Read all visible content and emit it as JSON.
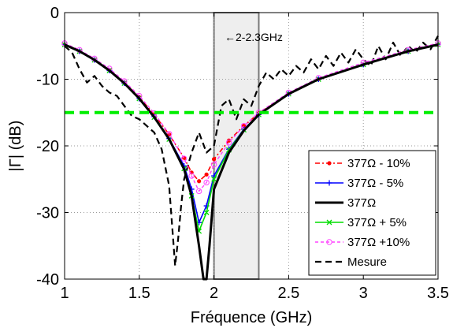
{
  "chart_data": {
    "type": "line",
    "xlabel": "Fréquence (GHz)",
    "ylabel": "|Γ| (dB)",
    "xlim": [
      1,
      3.5
    ],
    "ylim": [
      -40,
      0
    ],
    "xticks": [
      "1",
      "1.5",
      "2",
      "2.5",
      "3",
      "3.5"
    ],
    "yticks": [
      "0",
      "-10",
      "-20",
      "-30",
      "-40"
    ],
    "grid": true,
    "legend_position": "bottom-right",
    "band": {
      "x": [
        2,
        2.3
      ],
      "label": "←2-2.3GHz"
    },
    "threshold": {
      "y": -15,
      "color": "#00ee00"
    },
    "series": [
      {
        "name": "377Ω - 10%",
        "color": "#ff0000",
        "x": [
          1.0,
          1.1,
          1.2,
          1.3,
          1.4,
          1.5,
          1.6,
          1.7,
          1.8,
          1.85,
          1.9,
          1.95,
          2.0,
          2.1,
          2.2,
          2.3,
          2.5,
          2.7,
          3.0,
          3.3,
          3.5
        ],
        "y": [
          -4.8,
          -5.8,
          -7.1,
          -8.6,
          -10.5,
          -12.7,
          -15.3,
          -18.3,
          -21.8,
          -24,
          -25.3,
          -24.3,
          -22,
          -19.2,
          -17,
          -15.1,
          -12.2,
          -10,
          -7.8,
          -5.8,
          -4.8
        ]
      },
      {
        "name": "377Ω - 5%",
        "color": "#0000ff",
        "x": [
          1.0,
          1.1,
          1.2,
          1.3,
          1.4,
          1.5,
          1.6,
          1.7,
          1.8,
          1.85,
          1.9,
          1.95,
          2.0,
          2.1,
          2.2,
          2.3,
          2.5,
          2.7,
          3.0,
          3.3,
          3.5
        ],
        "y": [
          -4.8,
          -5.8,
          -7.1,
          -8.7,
          -10.6,
          -12.9,
          -15.6,
          -18.9,
          -23,
          -26.5,
          -31.5,
          -29,
          -24.5,
          -20.5,
          -17.5,
          -15.3,
          -12.2,
          -10,
          -7.8,
          -5.8,
          -4.8
        ]
      },
      {
        "name": "377Ω",
        "color": "#000000",
        "x": [
          1.0,
          1.1,
          1.2,
          1.3,
          1.4,
          1.5,
          1.6,
          1.7,
          1.8,
          1.85,
          1.9,
          1.93,
          1.95,
          1.97,
          2.0,
          2.1,
          2.2,
          2.3,
          2.5,
          2.7,
          3.0,
          3.3,
          3.5
        ],
        "y": [
          -4.8,
          -5.8,
          -7.1,
          -8.7,
          -10.6,
          -12.9,
          -15.7,
          -19,
          -23.5,
          -27.5,
          -35,
          -40,
          -40,
          -35,
          -26.5,
          -21,
          -17.7,
          -15.3,
          -12.2,
          -10,
          -7.8,
          -5.8,
          -4.8
        ]
      },
      {
        "name": "377Ω + 5%",
        "color": "#00dd00",
        "x": [
          1.0,
          1.1,
          1.2,
          1.3,
          1.4,
          1.5,
          1.6,
          1.7,
          1.8,
          1.85,
          1.9,
          1.95,
          2.0,
          2.1,
          2.2,
          2.3,
          2.5,
          2.7,
          3.0,
          3.3,
          3.5
        ],
        "y": [
          -4.8,
          -5.8,
          -7.1,
          -8.7,
          -10.6,
          -12.9,
          -15.7,
          -19,
          -23.4,
          -27.5,
          -32.8,
          -30,
          -25,
          -20.6,
          -17.6,
          -15.3,
          -12.2,
          -10,
          -7.8,
          -5.8,
          -4.8
        ]
      },
      {
        "name": "377Ω +10%",
        "color": "#ff44ff",
        "x": [
          1.0,
          1.1,
          1.2,
          1.3,
          1.4,
          1.5,
          1.6,
          1.7,
          1.8,
          1.85,
          1.9,
          1.95,
          2.0,
          2.1,
          2.2,
          2.3,
          2.5,
          2.7,
          3.0,
          3.3,
          3.5
        ],
        "y": [
          -4.6,
          -5.6,
          -6.9,
          -8.4,
          -10.3,
          -12.5,
          -15.1,
          -18.2,
          -21.9,
          -24.5,
          -26.8,
          -25.5,
          -22.8,
          -19.5,
          -17,
          -15,
          -12,
          -9.8,
          -7.5,
          -5.6,
          -4.6
        ]
      },
      {
        "name": "Mesure",
        "color": "#000000",
        "x": [
          1.0,
          1.05,
          1.1,
          1.15,
          1.2,
          1.25,
          1.3,
          1.35,
          1.4,
          1.45,
          1.5,
          1.55,
          1.6,
          1.65,
          1.7,
          1.72,
          1.74,
          1.76,
          1.78,
          1.8,
          1.85,
          1.9,
          1.95,
          2.0,
          2.05,
          2.1,
          2.15,
          2.2,
          2.25,
          2.3,
          2.35,
          2.4,
          2.45,
          2.5,
          2.55,
          2.6,
          2.65,
          2.7,
          2.75,
          2.8,
          2.85,
          2.9,
          2.95,
          3.0,
          3.05,
          3.1,
          3.15,
          3.2,
          3.25,
          3.3,
          3.35,
          3.4,
          3.45,
          3.5
        ],
        "y": [
          -5,
          -6,
          -8.5,
          -10.5,
          -9.5,
          -11,
          -12,
          -12.5,
          -14,
          -15.5,
          -16,
          -17,
          -18,
          -20.5,
          -26,
          -32,
          -38,
          -34,
          -29,
          -25,
          -21,
          -18,
          -21,
          -20,
          -14,
          -13,
          -16,
          -13,
          -14,
          -11,
          -9,
          -10,
          -8.5,
          -9.5,
          -8,
          -9,
          -7,
          -8.5,
          -6.5,
          -8,
          -6,
          -7.5,
          -5.5,
          -7,
          -8,
          -5,
          -7,
          -4.5,
          -6.5,
          -5,
          -6,
          -4.5,
          -5.5,
          -3.5
        ]
      }
    ]
  }
}
